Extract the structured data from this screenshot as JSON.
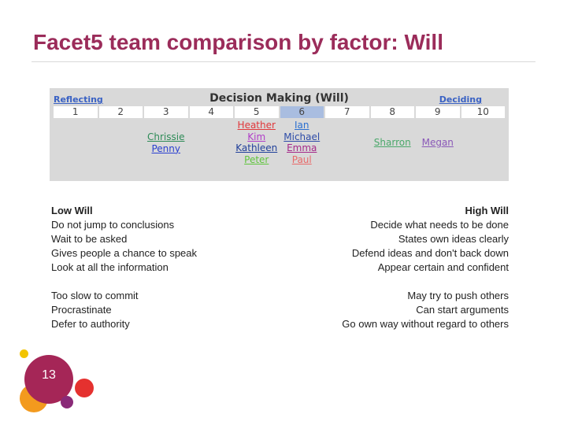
{
  "slide": {
    "title": "Facet5 team comparison by factor: Will",
    "page_number": "13"
  },
  "decision_table": {
    "title": "Decision Making (Will)",
    "left_label": "Reflecting",
    "right_label": "Deciding",
    "scale": [
      "1",
      "2",
      "3",
      "4",
      "5",
      "6",
      "7",
      "8",
      "9",
      "10"
    ],
    "highlighted_index": 6,
    "columns": [
      {
        "position": 3,
        "names": [
          {
            "name": "Chrissie",
            "color": "#2e8b57"
          },
          {
            "name": "Penny",
            "color": "#2a3fd0"
          }
        ]
      },
      {
        "position": 5,
        "names": [
          {
            "name": "Heather",
            "color": "#e0373a"
          },
          {
            "name": "Kim",
            "color": "#b03ec8"
          },
          {
            "name": "Kathleen",
            "color": "#1f3f9a"
          },
          {
            "name": "Peter",
            "color": "#5fc43c"
          }
        ]
      },
      {
        "position": 6,
        "names": [
          {
            "name": "Ian",
            "color": "#2a6fd0"
          },
          {
            "name": "Michael",
            "color": "#2e4ca8"
          },
          {
            "name": "Emma",
            "color": "#a52a8a"
          },
          {
            "name": "Paul",
            "color": "#e86a6a"
          }
        ]
      },
      {
        "position": 8,
        "names": [
          {
            "name": "Sharron",
            "color": "#4aa86a"
          }
        ]
      },
      {
        "position": 9,
        "names": [
          {
            "name": "Megan",
            "color": "#8a58b8"
          }
        ]
      }
    ]
  },
  "low_will": {
    "heading": "Low Will",
    "traits": [
      "Do not jump to conclusions",
      "Wait to be asked",
      "Gives people a chance to speak",
      "Look at all the information"
    ],
    "risks": [
      "Too slow to commit",
      "Procrastinate",
      "Defer to authority"
    ]
  },
  "high_will": {
    "heading": "High Will",
    "traits": [
      "Decide what needs to be done",
      "States own ideas clearly",
      "Defend ideas and don't back down",
      "Appear certain and confident"
    ],
    "risks": [
      "May try to push others",
      "Can start arguments",
      "Go own way without regard to others"
    ]
  },
  "colors": {
    "title": "#9b2c5a",
    "page_badge": "#a52657",
    "dot_yellow": "#f2c400",
    "dot_orange": "#f39a1e",
    "dot_red": "#e5312f",
    "dot_purple": "#8a2a78"
  }
}
